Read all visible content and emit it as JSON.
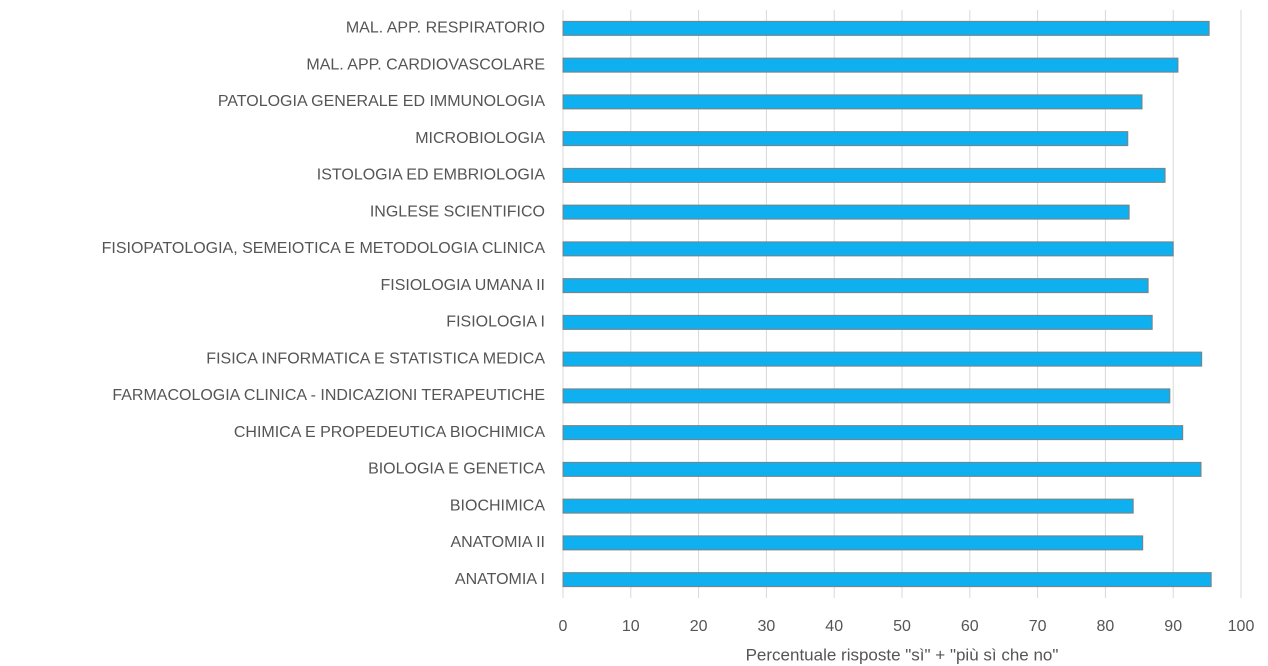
{
  "chart_data": {
    "type": "barh",
    "xlabel": "Percentuale risposte \"sì\" + \"più sì che no\"",
    "categories": [
      "MAL. APP. RESPIRATORIO",
      "MAL. APP. CARDIOVASCOLARE",
      "PATOLOGIA GENERALE ED IMMUNOLOGIA",
      "MICROBIOLOGIA",
      "ISTOLOGIA ED EMBRIOLOGIA",
      "INGLESE SCIENTIFICO",
      "FISIOPATOLOGIA, SEMEIOTICA E METODOLOGIA CLINICA",
      "FISIOLOGIA UMANA II",
      "FISIOLOGIA I",
      "FISICA INFORMATICA E STATISTICA MEDICA",
      "FARMACOLOGIA CLINICA - INDICAZIONI TERAPEUTICHE",
      "CHIMICA E PROPEDEUTICA BIOCHIMICA",
      "BIOLOGIA E GENETICA",
      "BIOCHIMICA",
      "ANATOMIA II",
      "ANATOMIA I"
    ],
    "values": [
      95.3,
      90.7,
      85.4,
      83.3,
      88.8,
      83.5,
      90.0,
      86.3,
      86.9,
      94.2,
      89.5,
      91.4,
      94.1,
      84.1,
      85.5,
      95.6
    ],
    "color": "#0eb0ef",
    "xlim": [
      0,
      100
    ],
    "xticks": [
      0,
      10,
      20,
      30,
      40,
      50,
      60,
      70,
      80,
      90,
      100
    ],
    "grid": true
  }
}
